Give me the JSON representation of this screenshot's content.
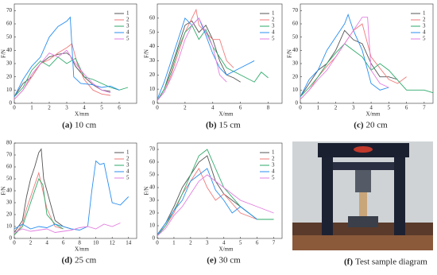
{
  "chart_data": [
    {
      "type": "line",
      "caption_label": "(a)",
      "caption": "10 cm",
      "x_label": "X/mm",
      "y_label": "F/N",
      "xlim": [
        0,
        7
      ],
      "xticks": [
        0,
        1,
        2,
        3,
        4,
        5,
        6
      ],
      "ylim": [
        0,
        75
      ],
      "yticks": [
        0,
        10,
        20,
        30,
        40,
        50,
        60,
        70
      ],
      "legend": "right",
      "series": [
        {
          "name": "1",
          "color": "#555555",
          "x": [
            0,
            0.5,
            1,
            1.5,
            2,
            2.5,
            3,
            3.2,
            3.5,
            4,
            4.5,
            5,
            5.5
          ],
          "values": [
            5,
            15,
            20,
            30,
            35,
            37,
            38,
            36,
            28,
            20,
            14,
            10,
            9
          ]
        },
        {
          "name": "2",
          "color": "#f07a7a",
          "x": [
            0,
            0.5,
            1,
            1.5,
            2,
            2.5,
            3,
            3.3,
            3.6,
            4,
            4.5,
            5,
            5.5
          ],
          "values": [
            3,
            10,
            20,
            30,
            33,
            38,
            42,
            45,
            30,
            18,
            10,
            7,
            6
          ]
        },
        {
          "name": "3",
          "color": "#2eaa6a",
          "x": [
            0,
            0.5,
            1,
            1.5,
            2,
            2.5,
            3,
            3.5,
            4,
            4.5,
            5,
            5.5,
            6,
            6.5
          ],
          "values": [
            5,
            12,
            25,
            32,
            28,
            35,
            30,
            34,
            20,
            18,
            15,
            12,
            10,
            12
          ]
        },
        {
          "name": "4",
          "color": "#2a8ff0",
          "x": [
            0,
            0.5,
            1,
            1.5,
            2,
            2.5,
            3,
            3.2,
            3.4,
            3.8,
            4.5,
            5,
            5.5,
            6
          ],
          "values": [
            5,
            18,
            28,
            35,
            50,
            58,
            62,
            65,
            20,
            15,
            14,
            12,
            13,
            10
          ]
        },
        {
          "name": "5",
          "color": "#e27fe0",
          "x": [
            0,
            0.5,
            1,
            1.5,
            2,
            2.5,
            3,
            3.5,
            4,
            4.5,
            5,
            5.5
          ],
          "values": [
            3,
            10,
            22,
            30,
            38,
            35,
            40,
            30,
            22,
            15,
            10,
            8
          ]
        }
      ]
    },
    {
      "type": "line",
      "caption_label": "(b)",
      "caption": "15 cm",
      "x_label": "X/mm",
      "y_label": "F/N",
      "xlim": [
        0,
        9
      ],
      "xticks": [
        0,
        2,
        4,
        6,
        8
      ],
      "ylim": [
        0,
        70
      ],
      "yticks": [
        0,
        10,
        20,
        30,
        40,
        50,
        60
      ],
      "legend": "right",
      "series": [
        {
          "name": "1",
          "color": "#555555",
          "x": [
            0,
            0.5,
            1,
            1.5,
            2,
            2.5,
            3,
            3.5,
            4,
            4.5,
            5,
            5.5,
            6
          ],
          "values": [
            2,
            10,
            25,
            40,
            55,
            58,
            50,
            55,
            45,
            30,
            20,
            18,
            15
          ]
        },
        {
          "name": "2",
          "color": "#f07a7a",
          "x": [
            0,
            0.5,
            1,
            1.5,
            2,
            2.5,
            2.8,
            3,
            3.5,
            4,
            4.5,
            5,
            5.5
          ],
          "values": [
            2,
            8,
            20,
            35,
            50,
            60,
            66,
            55,
            50,
            45,
            45,
            30,
            25
          ]
        },
        {
          "name": "3",
          "color": "#2eaa6a",
          "x": [
            0,
            0.5,
            1,
            1.5,
            2,
            2.5,
            3,
            3.5,
            4,
            5,
            6,
            7,
            7.5,
            8
          ],
          "values": [
            2,
            10,
            22,
            38,
            50,
            55,
            45,
            52,
            40,
            25,
            20,
            15,
            22,
            18
          ]
        },
        {
          "name": "4",
          "color": "#2a8ff0",
          "x": [
            0,
            0.5,
            1,
            1.5,
            2,
            2.5,
            3,
            3.5,
            4,
            4.5,
            5,
            6,
            7
          ],
          "values": [
            3,
            15,
            30,
            45,
            60,
            55,
            60,
            48,
            35,
            25,
            20,
            25,
            30
          ]
        },
        {
          "name": "5",
          "color": "#e27fe0",
          "x": [
            0,
            0.5,
            1,
            1.5,
            2,
            2.5,
            3,
            3.5,
            4,
            4.5,
            5
          ],
          "values": [
            2,
            8,
            18,
            30,
            45,
            55,
            60,
            50,
            40,
            20,
            15
          ]
        }
      ]
    },
    {
      "type": "line",
      "caption_label": "(c)",
      "caption": "20 cm",
      "x_label": "X/mm",
      "y_label": "F/N",
      "xlim": [
        0,
        7.5
      ],
      "xticks": [
        0,
        1,
        2,
        3,
        4,
        5,
        6,
        7
      ],
      "ylim": [
        0,
        75
      ],
      "yticks": [
        0,
        10,
        20,
        30,
        40,
        50,
        60,
        70
      ],
      "legend": "right",
      "series": [
        {
          "name": "1",
          "color": "#555555",
          "x": [
            0,
            0.5,
            1,
            1.5,
            2,
            2.5,
            3,
            3.5,
            4,
            4.5,
            5,
            5.5
          ],
          "values": [
            5,
            15,
            25,
            30,
            40,
            55,
            48,
            45,
            30,
            20,
            20,
            18
          ]
        },
        {
          "name": "2",
          "color": "#f07a7a",
          "x": [
            0,
            0.5,
            1,
            1.5,
            2,
            2.5,
            3,
            3.5,
            4,
            5,
            5.5,
            6
          ],
          "values": [
            3,
            10,
            20,
            28,
            35,
            45,
            55,
            60,
            35,
            18,
            15,
            20
          ]
        },
        {
          "name": "3",
          "color": "#2eaa6a",
          "x": [
            0,
            0.5,
            1,
            1.5,
            2,
            2.5,
            3,
            3.5,
            4,
            4.5,
            5,
            6,
            7,
            7.5
          ],
          "values": [
            5,
            12,
            20,
            30,
            38,
            45,
            40,
            35,
            25,
            30,
            25,
            10,
            10,
            8
          ]
        },
        {
          "name": "4",
          "color": "#2a8ff0",
          "x": [
            0,
            0.5,
            1,
            1.5,
            2,
            2.5,
            2.7,
            3,
            3.5,
            4,
            4.5,
            5
          ],
          "values": [
            5,
            18,
            25,
            40,
            50,
            60,
            67,
            55,
            40,
            15,
            10,
            12
          ]
        },
        {
          "name": "5",
          "color": "#e27fe0",
          "x": [
            0,
            0.5,
            1,
            1.5,
            2,
            2.5,
            3,
            3.5,
            3.8,
            4,
            4.5,
            5
          ],
          "values": [
            3,
            10,
            18,
            25,
            35,
            45,
            55,
            65,
            65,
            25,
            15,
            12
          ]
        }
      ]
    },
    {
      "type": "line",
      "caption_label": "(d)",
      "caption": "25 cm",
      "x_label": "X/mm",
      "y_label": "F/N",
      "xlim": [
        0,
        15
      ],
      "xticks": [
        0,
        2,
        4,
        6,
        8,
        10,
        12,
        14
      ],
      "ylim": [
        0,
        80
      ],
      "yticks": [
        0,
        10,
        20,
        30,
        40,
        50,
        60,
        70,
        80
      ],
      "legend": "right",
      "series": [
        {
          "name": "1",
          "color": "#555555",
          "x": [
            0,
            1,
            1.5,
            2,
            2.5,
            3,
            3.3,
            3.6,
            4,
            5,
            6,
            7
          ],
          "values": [
            5,
            15,
            35,
            50,
            60,
            72,
            75,
            50,
            40,
            15,
            10,
            8
          ]
        },
        {
          "name": "2",
          "color": "#f07a7a",
          "x": [
            0,
            1,
            1.5,
            2,
            2.5,
            3,
            3.5,
            4,
            5,
            6
          ],
          "values": [
            3,
            12,
            25,
            35,
            45,
            55,
            40,
            25,
            10,
            8
          ]
        },
        {
          "name": "3",
          "color": "#2eaa6a",
          "x": [
            0,
            1,
            1.5,
            2,
            2.5,
            3,
            3.5,
            4,
            5,
            6
          ],
          "values": [
            3,
            10,
            20,
            30,
            40,
            50,
            45,
            20,
            12,
            8
          ]
        },
        {
          "name": "4",
          "color": "#2a8ff0",
          "x": [
            0,
            1,
            2,
            3,
            4,
            5,
            6,
            7,
            8,
            9,
            9.5,
            10,
            10.5,
            11,
            12,
            13,
            14
          ],
          "values": [
            8,
            12,
            8,
            10,
            9,
            12,
            10,
            8,
            7,
            10,
            40,
            65,
            62,
            63,
            30,
            28,
            35
          ]
        },
        {
          "name": "5",
          "color": "#e27fe0",
          "x": [
            0,
            1,
            2,
            3,
            4,
            5,
            6,
            7,
            8,
            9,
            10,
            11,
            12,
            13
          ],
          "values": [
            5,
            8,
            6,
            7,
            8,
            5,
            6,
            7,
            9,
            10,
            8,
            12,
            10,
            13
          ]
        }
      ]
    },
    {
      "type": "line",
      "caption_label": "(e)",
      "caption": "30 cm",
      "x_label": "X/mm",
      "y_label": "F/N",
      "xlim": [
        0,
        7.5
      ],
      "xticks": [
        0,
        1,
        2,
        3,
        4,
        5,
        6,
        7
      ],
      "ylim": [
        0,
        75
      ],
      "yticks": [
        0,
        10,
        20,
        30,
        40,
        50,
        60,
        70
      ],
      "legend": "right",
      "series": [
        {
          "name": "1",
          "color": "#555555",
          "x": [
            0,
            0.5,
            1,
            1.5,
            2,
            2.5,
            3,
            3.5,
            4,
            4.5,
            5,
            5.5
          ],
          "values": [
            3,
            12,
            25,
            40,
            50,
            60,
            65,
            45,
            35,
            30,
            25,
            20
          ]
        },
        {
          "name": "2",
          "color": "#f07a7a",
          "x": [
            0,
            0.5,
            1,
            1.5,
            2,
            2.5,
            3,
            3.5,
            4,
            5,
            6
          ],
          "values": [
            3,
            10,
            20,
            35,
            45,
            55,
            40,
            30,
            35,
            20,
            15
          ]
        },
        {
          "name": "3",
          "color": "#2eaa6a",
          "x": [
            0,
            0.5,
            1,
            1.5,
            2,
            2.5,
            3,
            3.5,
            4,
            5,
            6,
            7
          ],
          "values": [
            2,
            10,
            22,
            35,
            50,
            65,
            70,
            55,
            40,
            25,
            15,
            15
          ]
        },
        {
          "name": "4",
          "color": "#2a8ff0",
          "x": [
            0,
            0.5,
            1,
            1.5,
            2,
            2.5,
            3,
            3.5,
            4,
            4.5,
            5,
            5.5,
            6
          ],
          "values": [
            3,
            12,
            22,
            30,
            45,
            50,
            55,
            38,
            30,
            20,
            25,
            20,
            15
          ]
        },
        {
          "name": "5",
          "color": "#e27fe0",
          "x": [
            0,
            0.5,
            1,
            1.5,
            2,
            2.5,
            3,
            3.5,
            4,
            5,
            6,
            7
          ],
          "values": [
            2,
            8,
            18,
            25,
            35,
            45,
            50,
            45,
            40,
            30,
            25,
            20
          ]
        }
      ]
    }
  ],
  "photo": {
    "caption_label": "(f)",
    "caption": "Test sample diagram"
  }
}
